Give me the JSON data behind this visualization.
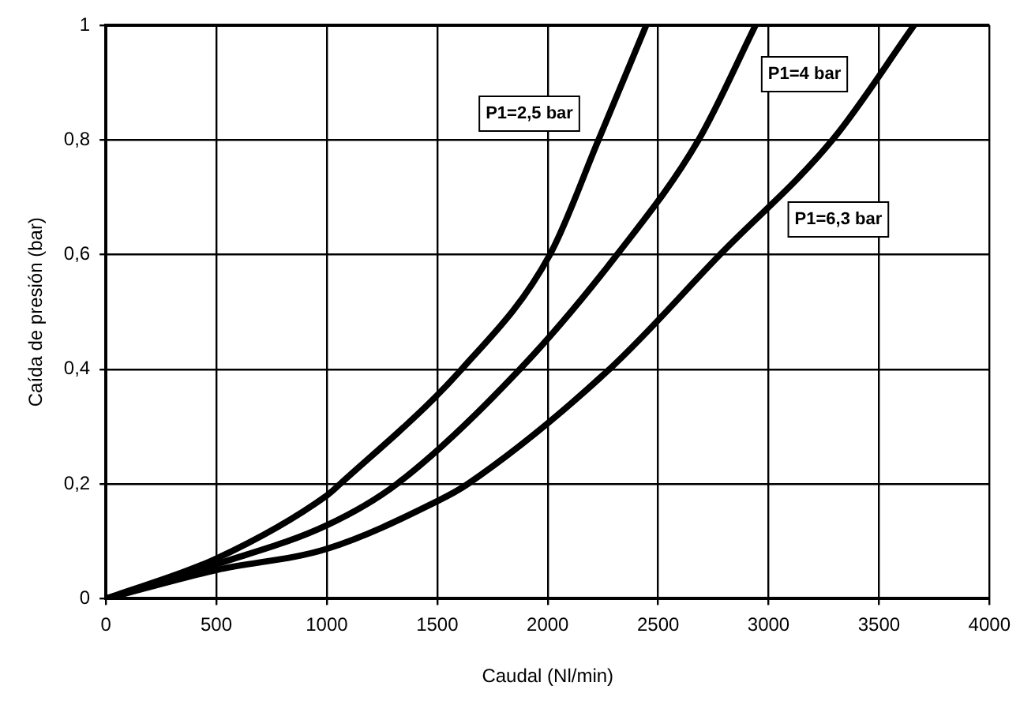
{
  "chart_data": {
    "type": "line",
    "xlabel": "Caudal (Nl/min)",
    "ylabel": "Caída de presión (bar)",
    "xlim": [
      0,
      4000
    ],
    "xticks": [
      0,
      500,
      1000,
      1500,
      2000,
      2500,
      3000,
      3500,
      4000
    ],
    "ylim": [
      0,
      1
    ],
    "yticks": [
      {
        "value": 0,
        "label": "0"
      },
      {
        "value": 0.2,
        "label": "0,2"
      },
      {
        "value": 0.4,
        "label": "0,4"
      },
      {
        "value": 0.6,
        "label": "0,6"
      },
      {
        "value": 0.8,
        "label": "0,8"
      },
      {
        "value": 1,
        "label": "1"
      }
    ],
    "grid": true,
    "legend": false,
    "marker": "none",
    "line_style": "solid",
    "series": [
      {
        "name": "P1=2,5 bar",
        "color": "#000000",
        "x": [
          0,
          500,
          1000,
          1060,
          1610,
          2010,
          2230,
          2446
        ],
        "values": [
          0,
          0.07,
          0.18,
          0.2,
          0.4,
          0.6,
          0.8,
          1
        ]
      },
      {
        "name": "P1=4 bar",
        "color": "#000000",
        "x": [
          0,
          500,
          1000,
          1317,
          1874,
          2314,
          2683,
          2941
        ],
        "values": [
          0,
          0.06,
          0.128,
          0.2,
          0.4,
          0.6,
          0.8,
          1
        ]
      },
      {
        "name": "P1=6,3 bar",
        "color": "#000000",
        "x": [
          0,
          500,
          1000,
          1500,
          1638,
          2279,
          2780,
          3289,
          3659
        ],
        "values": [
          0,
          0.05,
          0.087,
          0.17,
          0.2,
          0.4,
          0.6,
          0.8,
          1
        ]
      }
    ]
  }
}
